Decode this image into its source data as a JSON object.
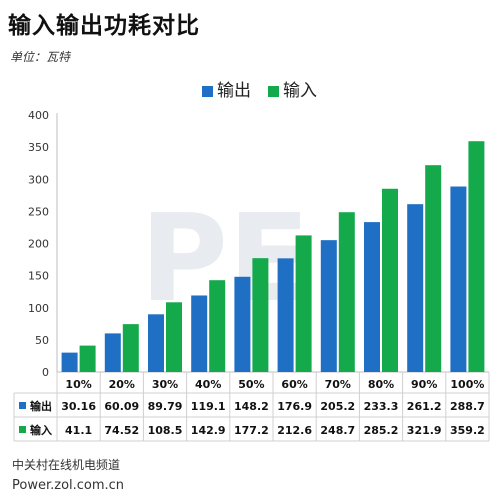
{
  "title": "输入输出功耗对比",
  "unit": "单位：瓦特",
  "footer": {
    "line1": "中关村在线机电频道",
    "line2": "Power.zol.com.cn"
  },
  "colors": {
    "output": "#1f6fc4",
    "input": "#14aa4c"
  },
  "chart_data": {
    "type": "bar",
    "categories": [
      "10%",
      "20%",
      "30%",
      "40%",
      "50%",
      "60%",
      "70%",
      "80%",
      "90%",
      "100%"
    ],
    "series": [
      {
        "name": "输出",
        "values": [
          "30.16",
          "60.09",
          "89.79",
          "119.1",
          "148.2",
          "176.9",
          "205.2",
          "233.3",
          "261.2",
          "288.7"
        ]
      },
      {
        "name": "输入",
        "values": [
          "41.1",
          "74.52",
          "108.5",
          "142.9",
          "177.2",
          "212.6",
          "248.7",
          "285.2",
          "321.9",
          "359.2"
        ]
      }
    ],
    "ylim": [
      0,
      400
    ],
    "yticks": [
      "0",
      "50",
      "100",
      "150",
      "200",
      "250",
      "300",
      "350",
      "400"
    ],
    "legend": "top-center",
    "grid": false,
    "data_table": true
  }
}
